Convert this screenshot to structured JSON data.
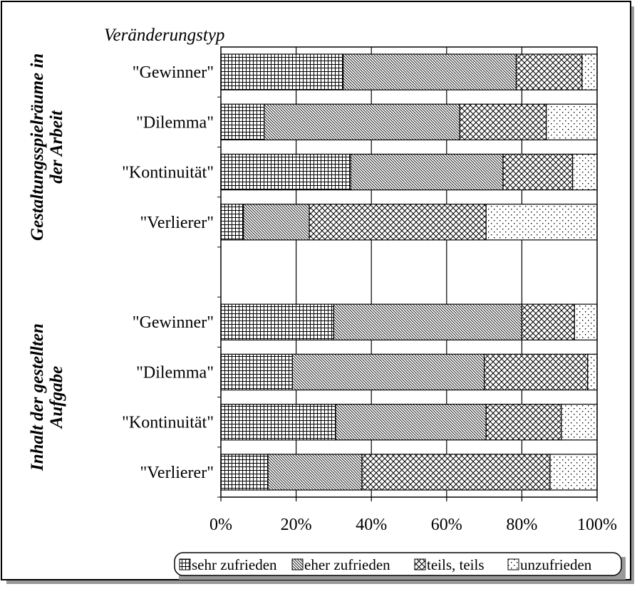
{
  "chart_data": {
    "type": "bar",
    "orientation": "horizontal",
    "stacked": "percent",
    "title": "Veränderungstyp",
    "xlim": [
      0,
      100
    ],
    "x_ticks": [
      "0%",
      "20%",
      "40%",
      "60%",
      "80%",
      "100%"
    ],
    "groups": [
      {
        "label": "Gestaltungsspielräume in der Arbeit",
        "label_lines": [
          "Gestaltungsspielräume in",
          "der Arbeit"
        ]
      },
      {
        "label": "Inhalt der gestellten Aufgabe",
        "label_lines": [
          "Inhalt der gestellten",
          "Aufgabe"
        ]
      }
    ],
    "categories": [
      "\"Gewinner\"",
      "\"Dilemma\"",
      "\"Kontinuität\"",
      "\"Verlierer\"",
      "",
      "\"Gewinner\"",
      "\"Dilemma\"",
      "\"Kontinuität\"",
      "\"Verlierer\""
    ],
    "series": [
      {
        "name": "sehr zufrieden",
        "pattern": "grid",
        "values": [
          32.5,
          11.5,
          34.5,
          6,
          null,
          30,
          19,
          30.5,
          12.5
        ]
      },
      {
        "name": "eher zufrieden",
        "pattern": "diagonal",
        "values": [
          46,
          52,
          40.5,
          17.5,
          null,
          50,
          51,
          40,
          25
        ]
      },
      {
        "name": "teils, teils",
        "pattern": "crosshatch",
        "values": [
          17.5,
          23,
          18.5,
          47,
          null,
          14,
          27.5,
          20,
          50
        ]
      },
      {
        "name": "unzufrieden",
        "pattern": "dots",
        "values": [
          4,
          13.5,
          6.5,
          29.5,
          null,
          6,
          2.5,
          9.5,
          12.5
        ]
      }
    ],
    "grid": true,
    "legend": "bottom"
  }
}
